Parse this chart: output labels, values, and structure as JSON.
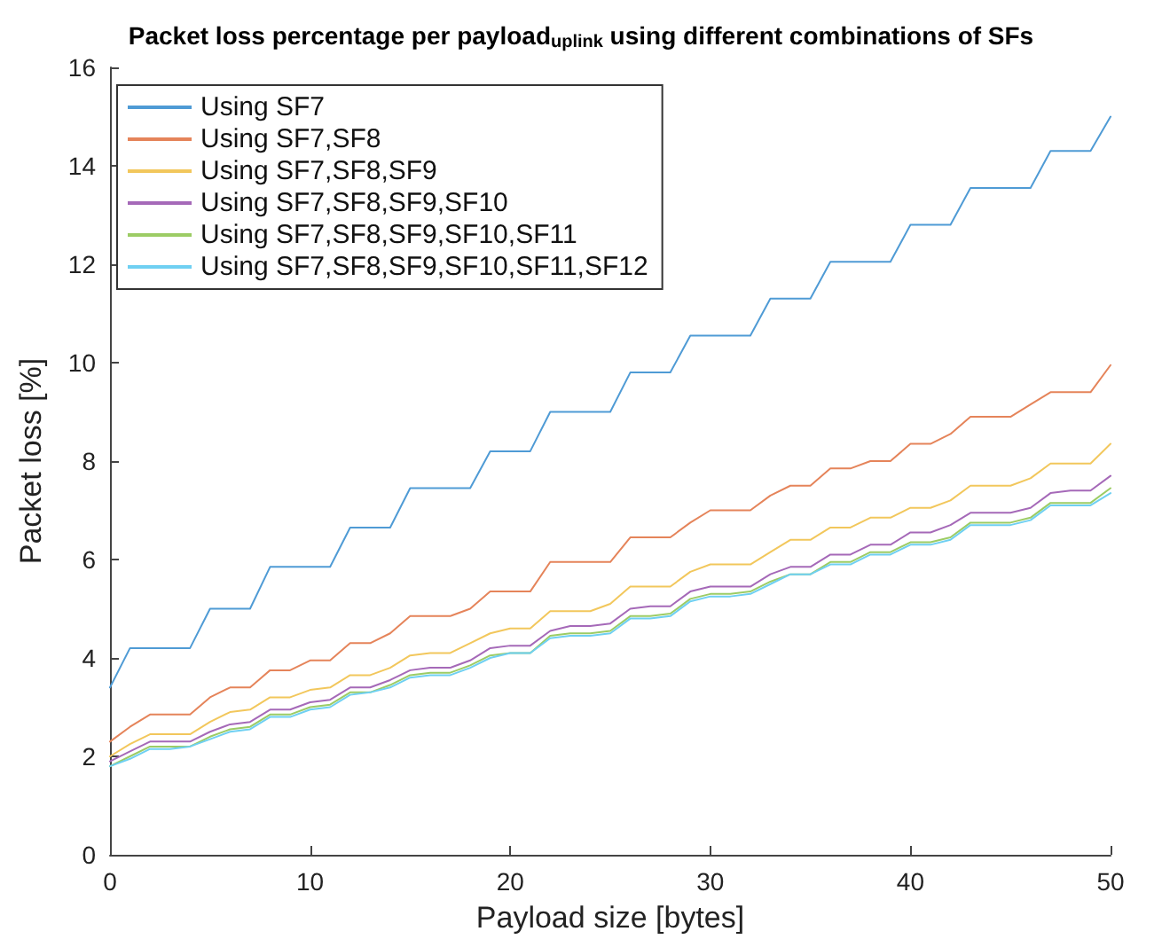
{
  "chart_data": {
    "type": "line",
    "title": "Packet loss percentage per payload$_{uplink}$ using different combinations of SFs",
    "xlabel": "Payload size [bytes]",
    "ylabel": "Packet loss [%]",
    "x": [
      0,
      1,
      2,
      3,
      4,
      5,
      6,
      7,
      8,
      9,
      10,
      11,
      12,
      13,
      14,
      15,
      16,
      17,
      18,
      19,
      20,
      21,
      22,
      23,
      24,
      25,
      26,
      27,
      28,
      29,
      30,
      31,
      32,
      33,
      34,
      35,
      36,
      37,
      38,
      39,
      40,
      41,
      42,
      43,
      44,
      45,
      46,
      47,
      48,
      49,
      50
    ],
    "xlim": [
      0,
      50
    ],
    "xticks": [
      0,
      10,
      20,
      30,
      40,
      50
    ],
    "ylim": [
      0,
      16
    ],
    "yticks": [
      0,
      2,
      4,
      6,
      8,
      10,
      12,
      14,
      16
    ],
    "grid": false,
    "legend": "top left",
    "marker": "none",
    "line_style": "solid",
    "series": [
      {
        "name": "Using SF7",
        "color": "#4f9bd5",
        "values": [
          3.4,
          4.2,
          4.2,
          4.2,
          4.2,
          5.0,
          5.0,
          5.0,
          5.85,
          5.85,
          5.85,
          5.85,
          6.65,
          6.65,
          6.65,
          7.45,
          7.45,
          7.45,
          7.45,
          8.2,
          8.2,
          8.2,
          9.0,
          9.0,
          9.0,
          9.0,
          9.8,
          9.8,
          9.8,
          10.55,
          10.55,
          10.55,
          10.55,
          11.3,
          11.3,
          11.3,
          12.05,
          12.05,
          12.05,
          12.05,
          12.8,
          12.8,
          12.8,
          13.55,
          13.55,
          13.55,
          13.55,
          14.3,
          14.3,
          14.3,
          15.0
        ]
      },
      {
        "name": "Using SF7,SF8",
        "color": "#e5845a",
        "values": [
          2.3,
          2.6,
          2.85,
          2.85,
          2.85,
          3.2,
          3.4,
          3.4,
          3.75,
          3.75,
          3.95,
          3.95,
          4.3,
          4.3,
          4.5,
          4.85,
          4.85,
          4.85,
          5.0,
          5.35,
          5.35,
          5.35,
          5.95,
          5.95,
          5.95,
          5.95,
          6.45,
          6.45,
          6.45,
          6.75,
          7.0,
          7.0,
          7.0,
          7.3,
          7.5,
          7.5,
          7.85,
          7.85,
          8.0,
          8.0,
          8.35,
          8.35,
          8.55,
          8.9,
          8.9,
          8.9,
          9.15,
          9.4,
          9.4,
          9.4,
          9.95
        ]
      },
      {
        "name": "Using SF7,SF8,SF9",
        "color": "#f2c75c",
        "values": [
          2.0,
          2.25,
          2.45,
          2.45,
          2.45,
          2.7,
          2.9,
          2.95,
          3.2,
          3.2,
          3.35,
          3.4,
          3.65,
          3.65,
          3.8,
          4.05,
          4.1,
          4.1,
          4.3,
          4.5,
          4.6,
          4.6,
          4.95,
          4.95,
          4.95,
          5.1,
          5.45,
          5.45,
          5.45,
          5.75,
          5.9,
          5.9,
          5.9,
          6.15,
          6.4,
          6.4,
          6.65,
          6.65,
          6.85,
          6.85,
          7.05,
          7.05,
          7.2,
          7.5,
          7.5,
          7.5,
          7.65,
          7.95,
          7.95,
          7.95,
          8.35
        ]
      },
      {
        "name": "Using SF7,SF8,SF9,SF10",
        "color": "#a569b8",
        "values": [
          1.9,
          2.1,
          2.3,
          2.3,
          2.3,
          2.5,
          2.65,
          2.7,
          2.95,
          2.95,
          3.1,
          3.15,
          3.4,
          3.4,
          3.55,
          3.75,
          3.8,
          3.8,
          3.95,
          4.2,
          4.25,
          4.25,
          4.55,
          4.65,
          4.65,
          4.7,
          5.0,
          5.05,
          5.05,
          5.35,
          5.45,
          5.45,
          5.45,
          5.7,
          5.85,
          5.85,
          6.1,
          6.1,
          6.3,
          6.3,
          6.55,
          6.55,
          6.7,
          6.95,
          6.95,
          6.95,
          7.05,
          7.35,
          7.4,
          7.4,
          7.7
        ]
      },
      {
        "name": "Using SF7,SF8,SF9,SF10,SF11",
        "color": "#9ccc65",
        "values": [
          1.8,
          2.0,
          2.2,
          2.2,
          2.2,
          2.4,
          2.55,
          2.6,
          2.85,
          2.85,
          3.0,
          3.05,
          3.3,
          3.3,
          3.45,
          3.65,
          3.7,
          3.7,
          3.85,
          4.05,
          4.1,
          4.1,
          4.45,
          4.5,
          4.5,
          4.55,
          4.85,
          4.85,
          4.9,
          5.2,
          5.3,
          5.3,
          5.35,
          5.55,
          5.7,
          5.7,
          5.95,
          5.95,
          6.15,
          6.15,
          6.35,
          6.35,
          6.45,
          6.75,
          6.75,
          6.75,
          6.85,
          7.15,
          7.15,
          7.15,
          7.45
        ]
      },
      {
        "name": "Using SF7,SF8,SF9,SF10,SF11,SF12",
        "color": "#6fd0f2",
        "values": [
          1.8,
          1.95,
          2.15,
          2.15,
          2.2,
          2.35,
          2.5,
          2.55,
          2.8,
          2.8,
          2.95,
          3.0,
          3.25,
          3.3,
          3.4,
          3.6,
          3.65,
          3.65,
          3.8,
          4.0,
          4.1,
          4.1,
          4.4,
          4.45,
          4.45,
          4.5,
          4.8,
          4.8,
          4.85,
          5.15,
          5.25,
          5.25,
          5.3,
          5.5,
          5.7,
          5.7,
          5.9,
          5.9,
          6.1,
          6.1,
          6.3,
          6.3,
          6.4,
          6.7,
          6.7,
          6.7,
          6.8,
          7.1,
          7.1,
          7.1,
          7.35
        ]
      }
    ]
  }
}
